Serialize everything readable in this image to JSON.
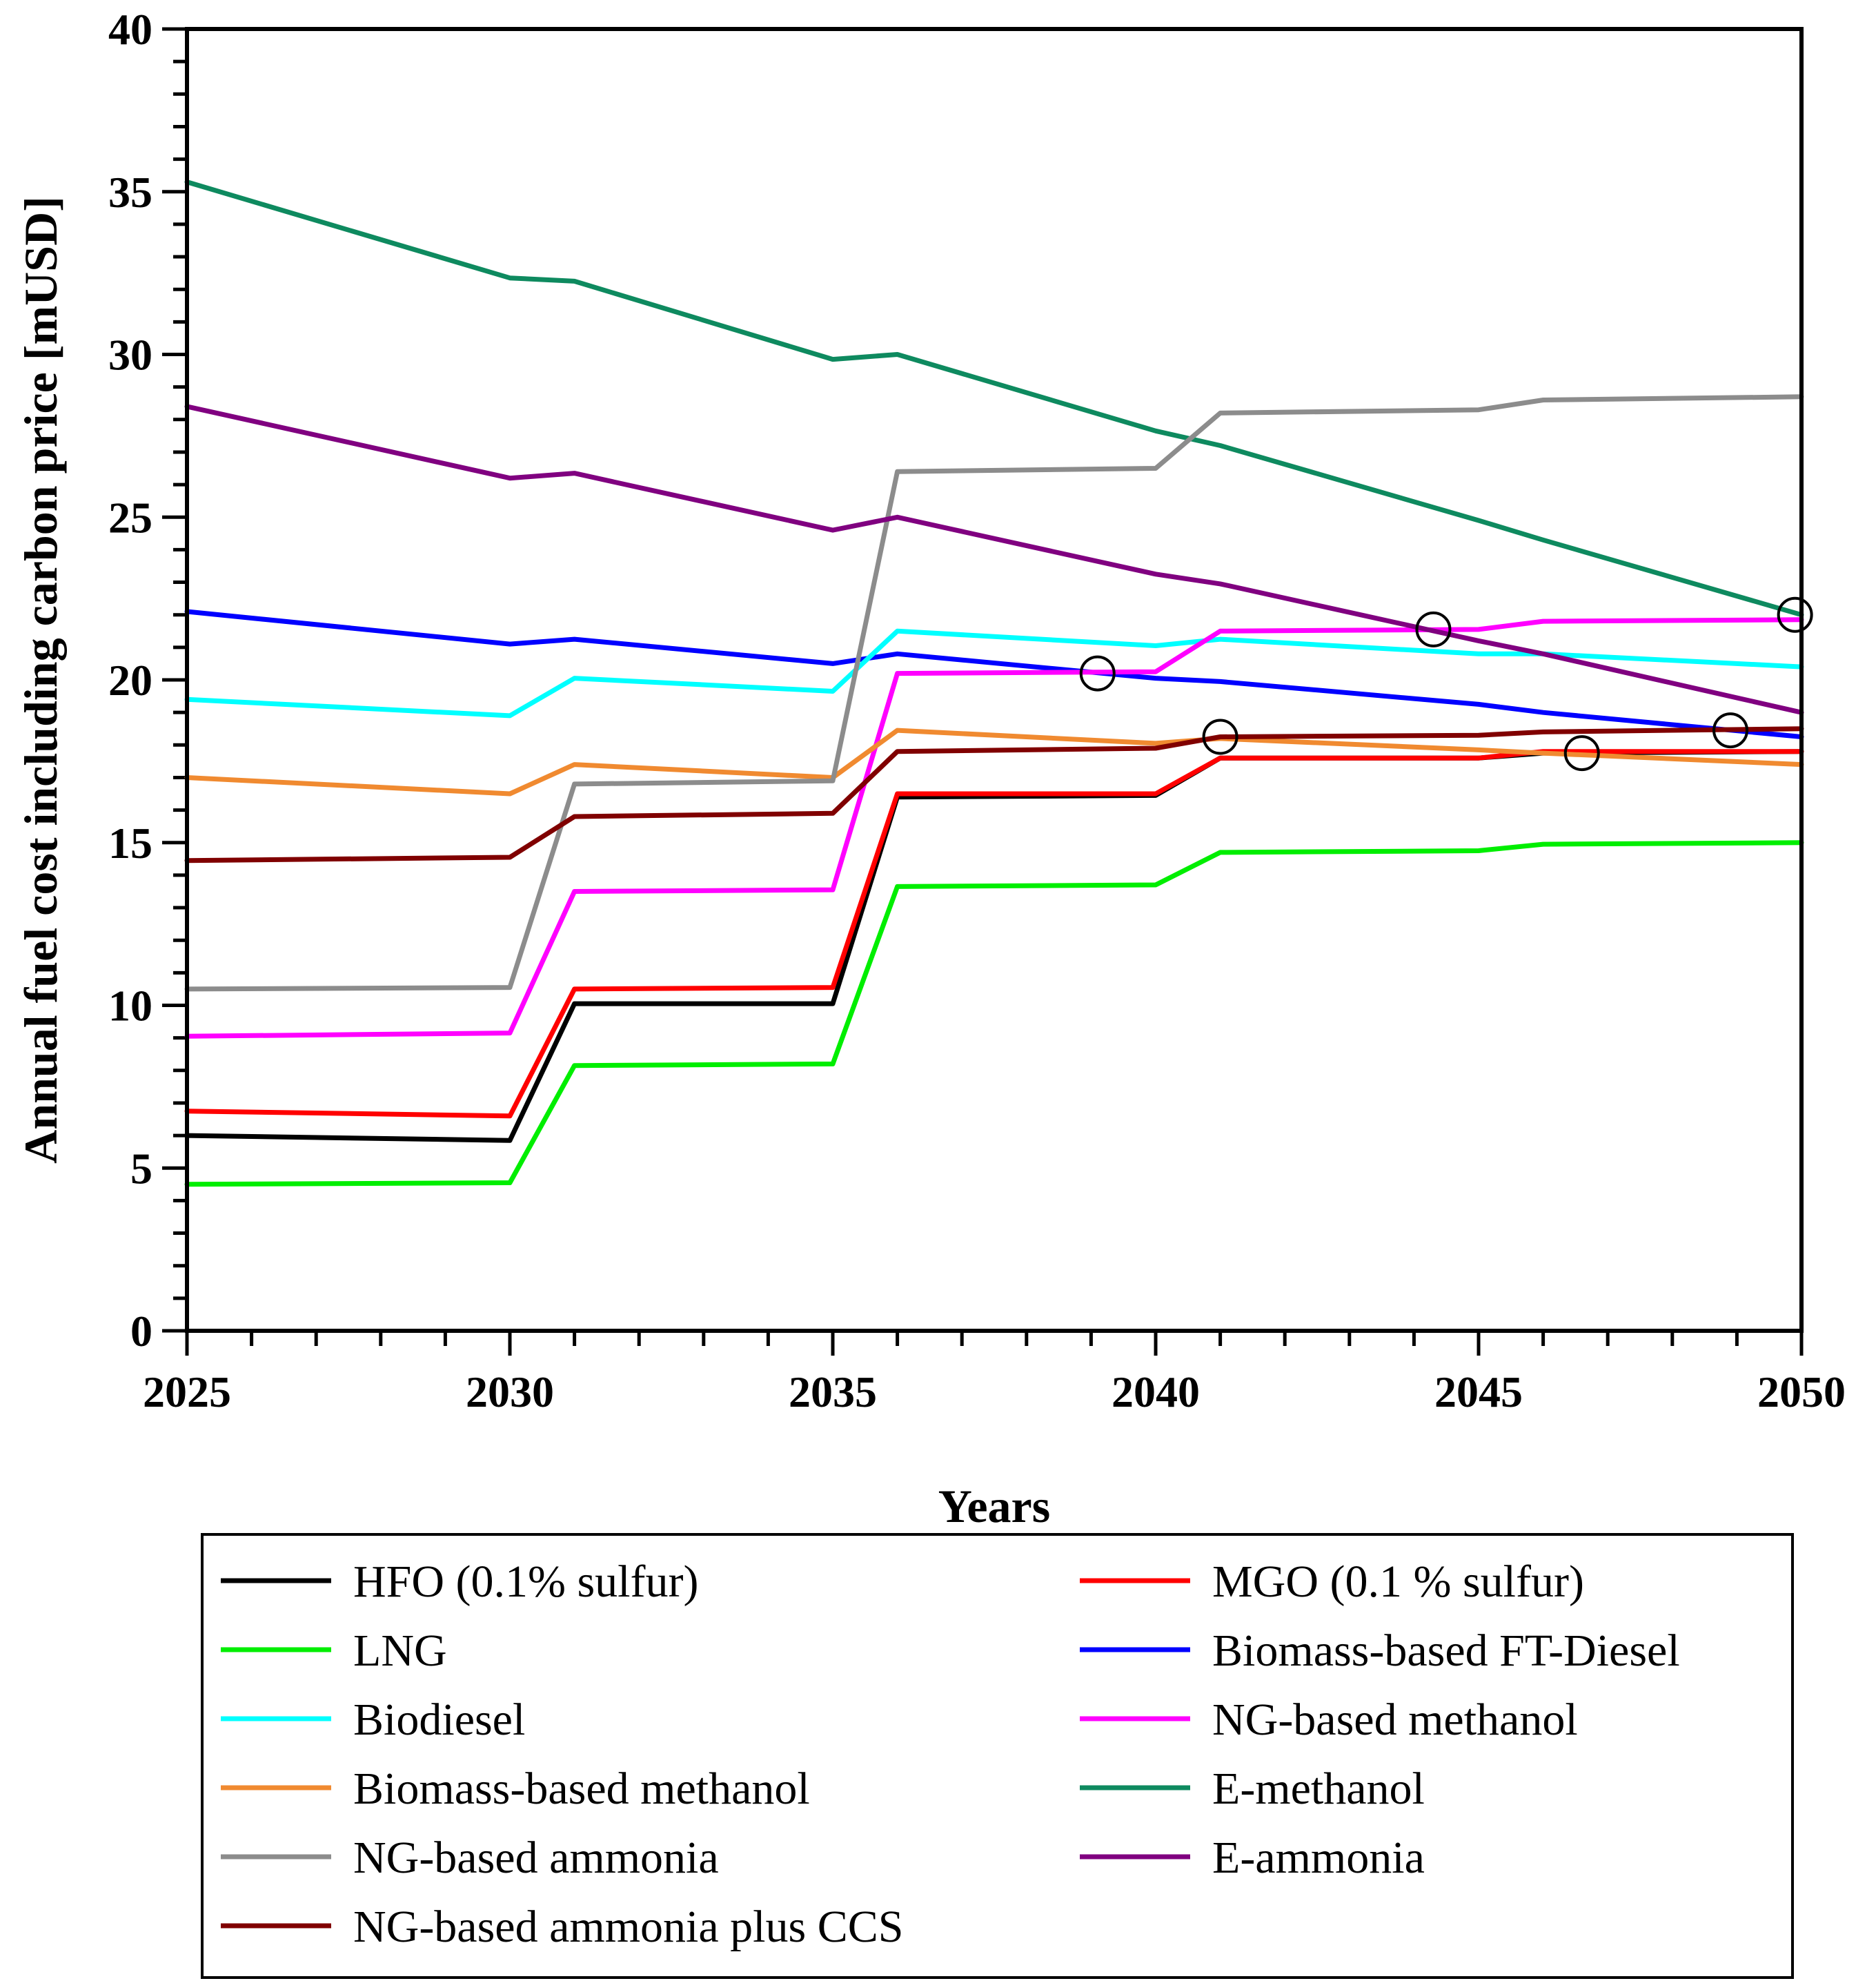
{
  "chart_data": {
    "type": "line",
    "title": "",
    "xlabel": "Years",
    "ylabel": "Annual fuel cost including carbon price [mUSD]",
    "xlim": [
      2025,
      2050
    ],
    "ylim": [
      0,
      40
    ],
    "x_ticks": [
      2025,
      2030,
      2035,
      2040,
      2045,
      2050
    ],
    "y_ticks": [
      0,
      5,
      10,
      15,
      20,
      25,
      30,
      35,
      40
    ],
    "grid": false,
    "legend_position": "bottom",
    "series": [
      {
        "name": "HFO (0.1% sulfur)",
        "color": "#000000",
        "points": [
          [
            2025,
            6.0
          ],
          [
            2030,
            5.85
          ],
          [
            2031,
            10.05
          ],
          [
            2035,
            10.05
          ],
          [
            2036,
            16.4
          ],
          [
            2040,
            16.45
          ],
          [
            2041,
            17.6
          ],
          [
            2045,
            17.6
          ],
          [
            2046,
            17.75
          ],
          [
            2050,
            17.8
          ]
        ]
      },
      {
        "name": "MGO (0.1 % sulfur)",
        "color": "#ff0000",
        "points": [
          [
            2025,
            6.75
          ],
          [
            2030,
            6.6
          ],
          [
            2031,
            10.5
          ],
          [
            2035,
            10.55
          ],
          [
            2036,
            16.5
          ],
          [
            2040,
            16.5
          ],
          [
            2041,
            17.6
          ],
          [
            2045,
            17.6
          ],
          [
            2046,
            17.8
          ],
          [
            2050,
            17.8
          ]
        ]
      },
      {
        "name": "LNG",
        "color": "#00ee00",
        "points": [
          [
            2025,
            4.5
          ],
          [
            2030,
            4.55
          ],
          [
            2031,
            8.15
          ],
          [
            2035,
            8.2
          ],
          [
            2036,
            13.65
          ],
          [
            2040,
            13.7
          ],
          [
            2041,
            14.7
          ],
          [
            2045,
            14.75
          ],
          [
            2046,
            14.95
          ],
          [
            2050,
            15.0
          ]
        ]
      },
      {
        "name": "Biomass-based FT-Diesel",
        "color": "#0000ff",
        "points": [
          [
            2025,
            22.1
          ],
          [
            2030,
            21.1
          ],
          [
            2031,
            21.25
          ],
          [
            2035,
            20.5
          ],
          [
            2036,
            20.8
          ],
          [
            2040,
            20.05
          ],
          [
            2041,
            19.95
          ],
          [
            2045,
            19.25
          ],
          [
            2046,
            19.0
          ],
          [
            2050,
            18.25
          ]
        ]
      },
      {
        "name": "Biodiesel",
        "color": "#00ffff",
        "points": [
          [
            2025,
            19.4
          ],
          [
            2030,
            18.9
          ],
          [
            2031,
            20.05
          ],
          [
            2035,
            19.65
          ],
          [
            2036,
            21.5
          ],
          [
            2040,
            21.05
          ],
          [
            2041,
            21.25
          ],
          [
            2045,
            20.8
          ],
          [
            2046,
            20.8
          ],
          [
            2050,
            20.4
          ]
        ]
      },
      {
        "name": "NG-based methanol",
        "color": "#ff00ff",
        "points": [
          [
            2025,
            9.05
          ],
          [
            2030,
            9.15
          ],
          [
            2031,
            13.5
          ],
          [
            2035,
            13.55
          ],
          [
            2036,
            20.2
          ],
          [
            2040,
            20.25
          ],
          [
            2041,
            21.5
          ],
          [
            2045,
            21.55
          ],
          [
            2046,
            21.8
          ],
          [
            2050,
            21.85
          ]
        ]
      },
      {
        "name": "Biomass-based methanol",
        "color": "#f08a30",
        "points": [
          [
            2025,
            17.0
          ],
          [
            2030,
            16.5
          ],
          [
            2031,
            17.4
          ],
          [
            2035,
            17.0
          ],
          [
            2036,
            18.45
          ],
          [
            2040,
            18.05
          ],
          [
            2041,
            18.2
          ],
          [
            2045,
            17.85
          ],
          [
            2046,
            17.75
          ],
          [
            2050,
            17.4
          ]
        ]
      },
      {
        "name": "E-methanol",
        "color": "#0e8a5f",
        "points": [
          [
            2025,
            35.3
          ],
          [
            2030,
            32.35
          ],
          [
            2031,
            32.25
          ],
          [
            2035,
            29.85
          ],
          [
            2036,
            30.0
          ],
          [
            2040,
            27.65
          ],
          [
            2041,
            27.2
          ],
          [
            2045,
            24.9
          ],
          [
            2046,
            24.3
          ],
          [
            2050,
            22.0
          ]
        ]
      },
      {
        "name": "NG-based ammonia",
        "color": "#8c8c8c",
        "points": [
          [
            2025,
            10.5
          ],
          [
            2030,
            10.55
          ],
          [
            2031,
            16.8
          ],
          [
            2035,
            16.9
          ],
          [
            2036,
            26.4
          ],
          [
            2040,
            26.5
          ],
          [
            2041,
            28.2
          ],
          [
            2045,
            28.3
          ],
          [
            2046,
            28.6
          ],
          [
            2050,
            28.7
          ]
        ]
      },
      {
        "name": "E-ammonia",
        "color": "#800080",
        "points": [
          [
            2025,
            28.4
          ],
          [
            2030,
            26.2
          ],
          [
            2031,
            26.35
          ],
          [
            2035,
            24.6
          ],
          [
            2036,
            25.0
          ],
          [
            2040,
            23.25
          ],
          [
            2041,
            22.95
          ],
          [
            2045,
            21.2
          ],
          [
            2046,
            20.8
          ],
          [
            2050,
            19.0
          ]
        ]
      },
      {
        "name": "NG-based ammonia plus CCS",
        "color": "#800000",
        "points": [
          [
            2025,
            14.45
          ],
          [
            2030,
            14.55
          ],
          [
            2031,
            15.8
          ],
          [
            2035,
            15.9
          ],
          [
            2036,
            17.8
          ],
          [
            2040,
            17.9
          ],
          [
            2041,
            18.25
          ],
          [
            2045,
            18.3
          ],
          [
            2046,
            18.4
          ],
          [
            2050,
            18.5
          ]
        ]
      }
    ],
    "annotations": [
      {
        "type": "circle",
        "x": 2039.1,
        "y": 20.2
      },
      {
        "type": "circle",
        "x": 2041.0,
        "y": 18.25
      },
      {
        "type": "circle",
        "x": 2044.3,
        "y": 21.55
      },
      {
        "type": "circle",
        "x": 2046.6,
        "y": 17.75
      },
      {
        "type": "circle",
        "x": 2048.9,
        "y": 18.45
      },
      {
        "type": "circle",
        "x": 2049.9,
        "y": 22.0
      }
    ]
  }
}
